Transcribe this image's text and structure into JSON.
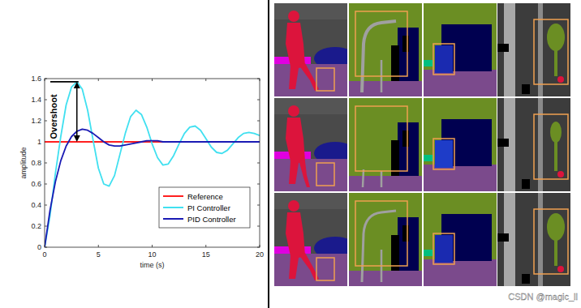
{
  "chart_data": {
    "type": "line",
    "x": [
      0,
      0.5,
      1,
      1.5,
      2,
      2.5,
      3,
      3.5,
      4,
      4.5,
      5,
      5.5,
      6,
      6.5,
      7,
      7.5,
      8,
      8.5,
      9,
      9.5,
      10,
      10.5,
      11,
      11.5,
      12,
      12.5,
      13,
      13.5,
      14,
      14.5,
      15,
      15.5,
      16,
      16.5,
      17,
      17.5,
      18,
      18.5,
      19,
      19.5,
      20
    ],
    "xlim": [
      0,
      20
    ],
    "xticks": [
      0,
      5,
      10,
      15,
      20
    ],
    "ylim": [
      0,
      1.6
    ],
    "yticks": [
      0,
      0.2,
      0.4,
      0.6,
      0.8,
      1,
      1.2,
      1.4,
      1.6
    ],
    "x_label": "time (s)",
    "y_label": "amplitude",
    "legend": "southeast",
    "grid": false,
    "annotations": [
      {
        "text": "Overshoot"
      }
    ],
    "series": [
      {
        "name": "Reference",
        "color": "#ff2020",
        "values": [
          1,
          1,
          1,
          1,
          1,
          1,
          1,
          1,
          1,
          1,
          1,
          1,
          1,
          1,
          1,
          1,
          1,
          1,
          1,
          1,
          1,
          1,
          1,
          1,
          1,
          1,
          1,
          1,
          1,
          1,
          1,
          1,
          1,
          1,
          1,
          1,
          1,
          1,
          1,
          1,
          1
        ]
      },
      {
        "name": "PI Controller",
        "color": "#40e0f0",
        "values": [
          0,
          0.3,
          0.7,
          1.05,
          1.35,
          1.52,
          1.57,
          1.5,
          1.3,
          1.02,
          0.75,
          0.6,
          0.58,
          0.68,
          0.88,
          1.08,
          1.24,
          1.3,
          1.26,
          1.14,
          0.98,
          0.85,
          0.78,
          0.79,
          0.87,
          0.98,
          1.08,
          1.14,
          1.15,
          1.11,
          1.03,
          0.95,
          0.9,
          0.89,
          0.92,
          0.98,
          1.04,
          1.08,
          1.09,
          1.08,
          1.06
        ]
      },
      {
        "name": "PID Controller",
        "color": "#1a1ab4",
        "values": [
          0,
          0.35,
          0.62,
          0.82,
          0.96,
          1.05,
          1.1,
          1.12,
          1.11,
          1.08,
          1.04,
          1.0,
          0.97,
          0.96,
          0.96,
          0.97,
          0.98,
          0.99,
          1.0,
          1.01,
          1.01,
          1.01,
          1.0,
          1.0,
          1.0,
          1.0,
          1.0,
          1.0,
          1.0,
          1.0,
          1.0,
          1.0,
          1.0,
          1.0,
          1.0,
          1.0,
          1.0,
          1.0,
          1.0,
          1.0,
          1.0
        ]
      }
    ]
  },
  "watermark": "CSDN @magic_ll"
}
